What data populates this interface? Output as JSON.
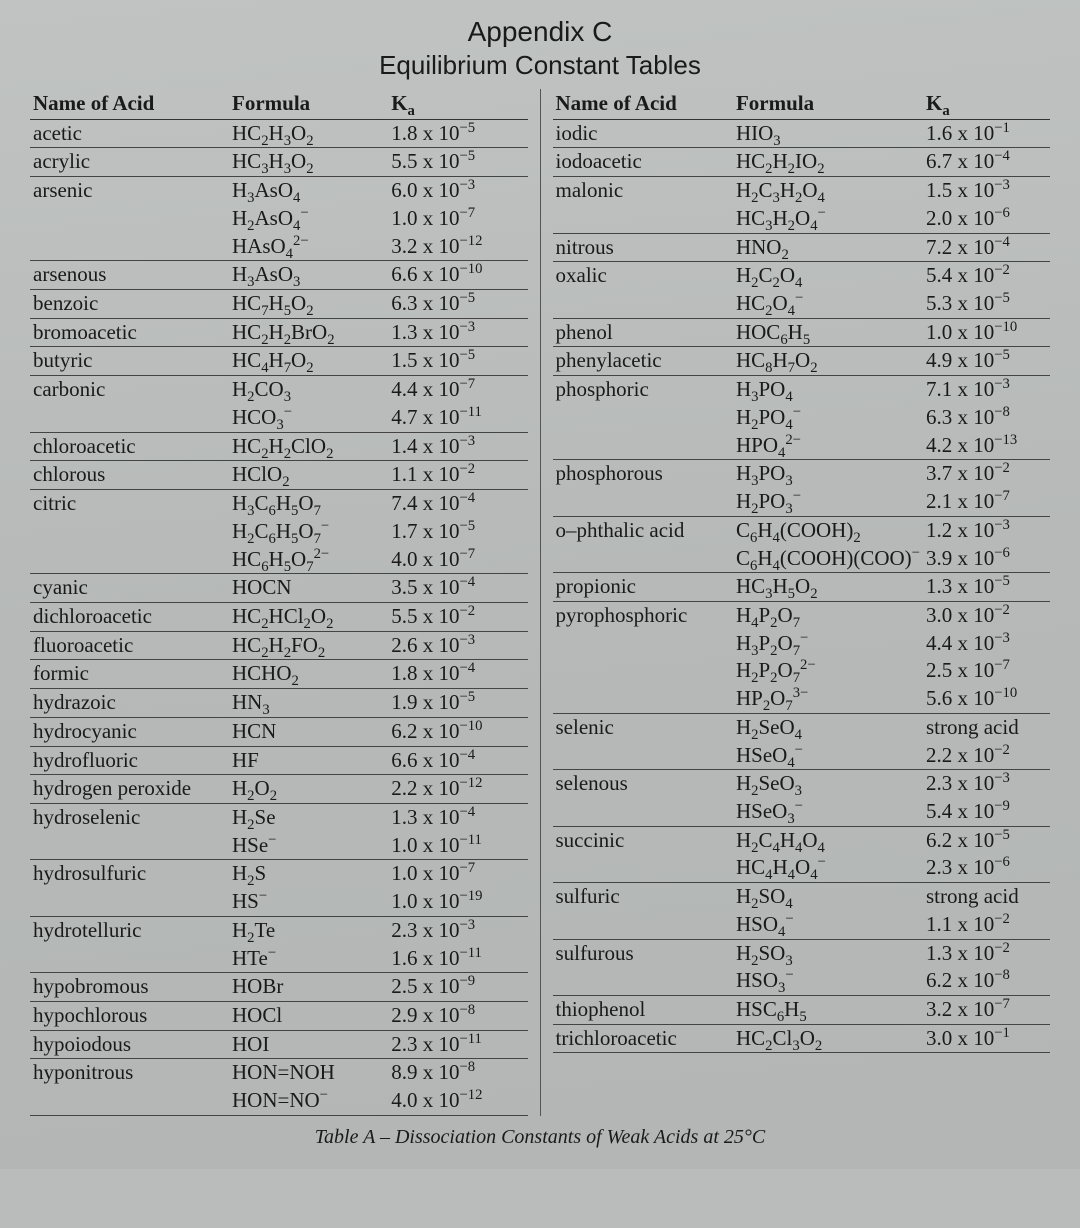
{
  "title": "Appendix C",
  "subtitle": "Equilibrium Constant Tables",
  "caption": "Table A – Dissociation Constants of Weak Acids at 25°C",
  "headers": {
    "name": "Name of Acid",
    "formula": "Formula",
    "ka": "K_a"
  },
  "font": {
    "body_family": "Times New Roman",
    "heading_family": "Arial",
    "body_size_pt": 16,
    "heading_size_pt": 20
  },
  "colors": {
    "text": "#1a1a1a",
    "rule": "#333333",
    "background": "#b9bcbb"
  },
  "left": [
    {
      "name": "acetic",
      "formula": "HC_2H_3O_2",
      "ka": "1.8 x 10^-5",
      "div": 1
    },
    {
      "name": "acrylic",
      "formula": "HC_3H_3O_2",
      "ka": "5.5 x 10^-5",
      "div": 1
    },
    {
      "name": "arsenic",
      "formula": "H_3AsO_4",
      "ka": "6.0 x 10^-3",
      "div": 0
    },
    {
      "name": "",
      "formula": "H_2AsO_4^-",
      "ka": "1.0 x 10^-7",
      "div": 0
    },
    {
      "name": "",
      "formula": "HAsO_4^2-",
      "ka": "3.2 x 10^-12",
      "div": 1
    },
    {
      "name": "arsenous",
      "formula": "H_3AsO_3",
      "ka": "6.6 x 10^-10",
      "div": 1
    },
    {
      "name": "benzoic",
      "formula": "HC_7H_5O_2",
      "ka": "6.3 x 10^-5",
      "div": 1
    },
    {
      "name": "bromoacetic",
      "formula": "HC_2H_2BrO_2",
      "ka": "1.3 x 10^-3",
      "div": 1
    },
    {
      "name": "butyric",
      "formula": "HC_4H_7O_2",
      "ka": "1.5 x 10^-5",
      "div": 1
    },
    {
      "name": "carbonic",
      "formula": "H_2CO_3",
      "ka": "4.4 x 10^-7",
      "div": 0
    },
    {
      "name": "",
      "formula": "HCO_3^-",
      "ka": "4.7 x 10^-11",
      "div": 1
    },
    {
      "name": "chloroacetic",
      "formula": "HC_2H_2ClO_2",
      "ka": "1.4 x 10^-3",
      "div": 1
    },
    {
      "name": "chlorous",
      "formula": "HClO_2",
      "ka": "1.1 x 10^-2",
      "div": 1
    },
    {
      "name": "citric",
      "formula": "H_3C_6H_5O_7",
      "ka": "7.4 x 10^-4",
      "div": 0
    },
    {
      "name": "",
      "formula": "H_2C_6H_5O_7^-",
      "ka": "1.7 x 10^-5",
      "div": 0
    },
    {
      "name": "",
      "formula": "HC_6H_5O_7^2-",
      "ka": "4.0 x 10^-7",
      "div": 1
    },
    {
      "name": "cyanic",
      "formula": "HOCN",
      "ka": "3.5 x 10^-4",
      "div": 1
    },
    {
      "name": "dichloroacetic",
      "formula": "HC_2HCl_2O_2",
      "ka": "5.5 x 10^-2",
      "div": 1
    },
    {
      "name": "fluoroacetic",
      "formula": "HC_2H_2FO_2",
      "ka": "2.6 x 10^-3",
      "div": 1
    },
    {
      "name": "formic",
      "formula": "HCHO_2",
      "ka": "1.8 x 10^-4",
      "div": 1
    },
    {
      "name": "hydrazoic",
      "formula": "HN_3",
      "ka": "1.9 x 10^-5",
      "div": 1
    },
    {
      "name": "hydrocyanic",
      "formula": "HCN",
      "ka": "6.2 x 10^-10",
      "div": 1
    },
    {
      "name": "hydrofluoric",
      "formula": "HF",
      "ka": "6.6 x 10^-4",
      "div": 1
    },
    {
      "name": "hydrogen peroxide",
      "formula": "H_2O_2",
      "ka": "2.2 x 10^-12",
      "div": 1
    },
    {
      "name": "hydroselenic",
      "formula": "H_2Se",
      "ka": "1.3 x 10^-4",
      "div": 0
    },
    {
      "name": "",
      "formula": "HSe^-",
      "ka": "1.0 x 10^-11",
      "div": 1
    },
    {
      "name": "hydrosulfuric",
      "formula": "H_2S",
      "ka": "1.0 x 10^-7",
      "div": 0
    },
    {
      "name": "",
      "formula": "HS^-",
      "ka": "1.0 x 10^-19",
      "div": 1
    },
    {
      "name": "hydrotelluric",
      "formula": "H_2Te",
      "ka": "2.3 x 10^-3",
      "div": 0
    },
    {
      "name": "",
      "formula": "HTe^-",
      "ka": "1.6 x 10^-11",
      "div": 1
    },
    {
      "name": "hypobromous",
      "formula": "HOBr",
      "ka": "2.5 x 10^-9",
      "div": 1
    },
    {
      "name": "hypochlorous",
      "formula": "HOCl",
      "ka": "2.9 x 10^-8",
      "div": 1
    },
    {
      "name": "hypoiodous",
      "formula": "HOI",
      "ka": "2.3 x 10^-11",
      "div": 1
    },
    {
      "name": "hyponitrous",
      "formula": "HON=NOH",
      "ka": "8.9 x 10^-8",
      "div": 0
    },
    {
      "name": "",
      "formula": "HON=NO^-",
      "ka": "4.0 x 10^-12",
      "div": 1
    }
  ],
  "right": [
    {
      "name": "iodic",
      "formula": "HIO_3",
      "ka": "1.6 x 10^-1",
      "div": 1
    },
    {
      "name": "iodoacetic",
      "formula": "HC_2H_2IO_2",
      "ka": "6.7 x 10^-4",
      "div": 1
    },
    {
      "name": "malonic",
      "formula": "H_2C_3H_2O_4",
      "ka": "1.5 x 10^-3",
      "div": 0
    },
    {
      "name": "",
      "formula": "HC_3H_2O_4^-",
      "ka": "2.0 x 10^-6",
      "div": 1
    },
    {
      "name": "nitrous",
      "formula": "HNO_2",
      "ka": "7.2 x 10^-4",
      "div": 1
    },
    {
      "name": "oxalic",
      "formula": "H_2C_2O_4",
      "ka": "5.4 x 10^-2",
      "div": 0
    },
    {
      "name": "",
      "formula": "HC_2O_4^-",
      "ka": "5.3 x 10^-5",
      "div": 1
    },
    {
      "name": "phenol",
      "formula": "HOC_6H_5",
      "ka": "1.0 x 10^-10",
      "div": 1
    },
    {
      "name": "phenylacetic",
      "formula": "HC_8H_7O_2",
      "ka": "4.9 x 10^-5",
      "div": 1
    },
    {
      "name": "phosphoric",
      "formula": "H_3PO_4",
      "ka": "7.1 x 10^-3",
      "div": 0
    },
    {
      "name": "",
      "formula": "H_2PO_4^-",
      "ka": "6.3 x 10^-8",
      "div": 0
    },
    {
      "name": "",
      "formula": "HPO_4^2-",
      "ka": "4.2 x 10^-13",
      "div": 1
    },
    {
      "name": "phosphorous",
      "formula": "H_3PO_3",
      "ka": "3.7 x 10^-2",
      "div": 0
    },
    {
      "name": "",
      "formula": "H_2PO_3^-",
      "ka": "2.1 x 10^-7",
      "div": 1
    },
    {
      "name": "o–phthalic acid",
      "formula": "C_6H_4(COOH)_2",
      "ka": "1.2 x 10^-3",
      "div": 0
    },
    {
      "name": "",
      "formula": "C_6H_4(COOH)(COO)^-",
      "ka": "3.9 x 10^-6",
      "div": 1
    },
    {
      "name": "propionic",
      "formula": "HC_3H_5O_2",
      "ka": "1.3 x 10^-5",
      "div": 1
    },
    {
      "name": "pyrophosphoric",
      "formula": "H_4P_2O_7",
      "ka": "3.0 x 10^-2",
      "div": 0
    },
    {
      "name": "",
      "formula": "H_3P_2O_7^-",
      "ka": "4.4 x 10^-3",
      "div": 0
    },
    {
      "name": "",
      "formula": "H_2P_2O_7^2-",
      "ka": "2.5 x 10^-7",
      "div": 0
    },
    {
      "name": "",
      "formula": "HP_2O_7^3-",
      "ka": "5.6 x 10^-10",
      "div": 1
    },
    {
      "name": "selenic",
      "formula": "H_2SeO_4",
      "ka": "strong acid",
      "div": 0
    },
    {
      "name": "",
      "formula": "HSeO_4^-",
      "ka": "2.2 x 10^-2",
      "div": 1
    },
    {
      "name": "selenous",
      "formula": "H_2SeO_3",
      "ka": "2.3 x 10^-3",
      "div": 0
    },
    {
      "name": "",
      "formula": "HSeO_3^-",
      "ka": "5.4 x 10^-9",
      "div": 1
    },
    {
      "name": "succinic",
      "formula": "H_2C_4H_4O_4",
      "ka": "6.2 x 10^-5",
      "div": 0
    },
    {
      "name": "",
      "formula": "HC_4H_4O_4^-",
      "ka": "2.3 x 10^-6",
      "div": 1
    },
    {
      "name": "sulfuric",
      "formula": "H_2SO_4",
      "ka": "strong acid",
      "div": 0
    },
    {
      "name": "",
      "formula": "HSO_4^-",
      "ka": "1.1 x 10^-2",
      "div": 1
    },
    {
      "name": "sulfurous",
      "formula": "H_2SO_3",
      "ka": "1.3 x 10^-2",
      "div": 0
    },
    {
      "name": "",
      "formula": "HSO_3^-",
      "ka": "6.2 x 10^-8",
      "div": 1
    },
    {
      "name": "thiophenol",
      "formula": "HSC_6H_5",
      "ka": "3.2 x 10^-7",
      "div": 1
    },
    {
      "name": "trichloroacetic",
      "formula": "HC_2Cl_3O_2",
      "ka": "3.0 x 10^-1",
      "div": 1
    }
  ]
}
